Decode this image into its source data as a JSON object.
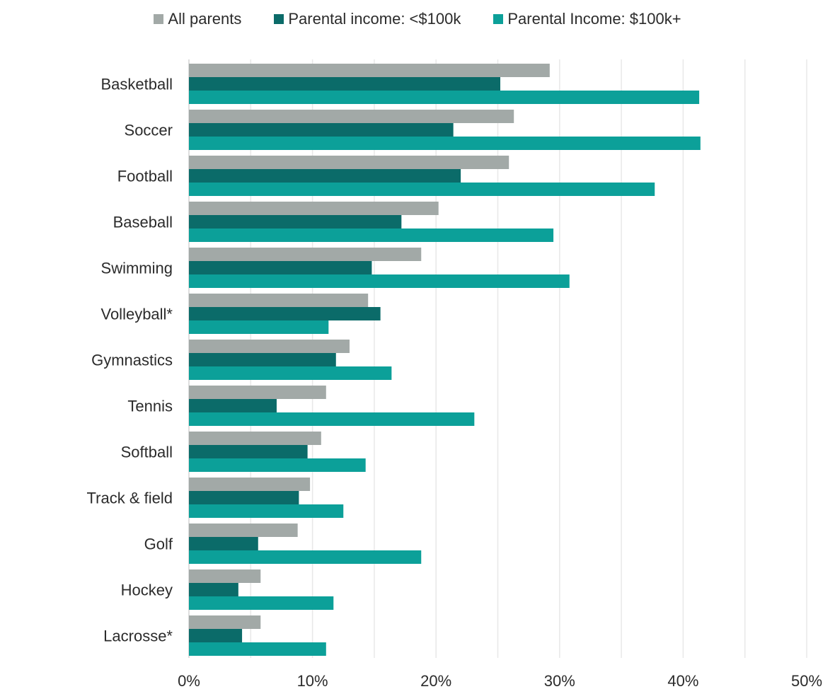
{
  "chart_data": {
    "type": "bar",
    "orientation": "horizontal",
    "categories": [
      "Basketball",
      "Soccer",
      "Football",
      "Baseball",
      "Swimming",
      "Volleyball*",
      "Gymnastics",
      "Tennis",
      "Softball",
      "Track & field",
      "Golf",
      "Hockey",
      "Lacrosse*"
    ],
    "series": [
      {
        "name": "All parents",
        "color": "#a2a9a7",
        "values": [
          29.2,
          26.3,
          25.9,
          20.2,
          18.8,
          14.5,
          13.0,
          11.1,
          10.7,
          9.8,
          8.8,
          5.8,
          5.8
        ]
      },
      {
        "name": "Parental income: <$100k",
        "color": "#0b6b69",
        "values": [
          25.2,
          21.4,
          22.0,
          17.2,
          14.8,
          15.5,
          11.9,
          7.1,
          9.6,
          8.9,
          5.6,
          4.0,
          4.3
        ]
      },
      {
        "name": "Parental Income: $100k+",
        "color": "#0ca099",
        "values": [
          41.3,
          41.4,
          37.7,
          29.5,
          30.8,
          11.3,
          16.4,
          23.1,
          14.3,
          12.5,
          18.8,
          11.7,
          11.1
        ]
      }
    ],
    "xlim": [
      0,
      50
    ],
    "xticks": [
      "0%",
      "10%",
      "20%",
      "30%",
      "40%",
      "50%"
    ],
    "grid": true,
    "legend_position": "top-center"
  }
}
